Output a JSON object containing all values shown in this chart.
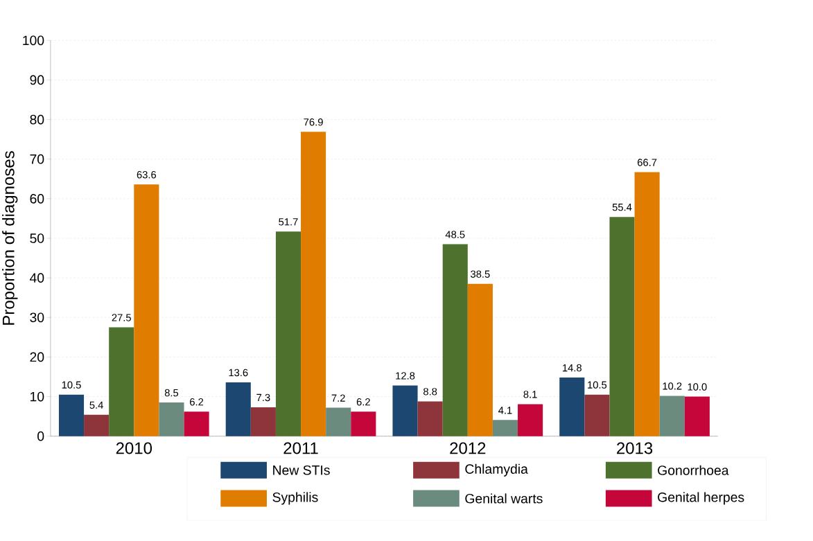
{
  "chart_data": {
    "type": "bar",
    "ylabel": "Proportion of diagnoses",
    "categories": [
      "2010",
      "2011",
      "2012",
      "2013"
    ],
    "series": [
      {
        "name": "New STIs",
        "color": "#1b4770",
        "values": [
          10.5,
          13.6,
          12.8,
          14.8
        ],
        "value_labels": [
          "10.5",
          "13.6",
          "12.8",
          "14.8"
        ]
      },
      {
        "name": "Chlamydia",
        "color": "#8e353b",
        "values": [
          5.4,
          7.3,
          8.8,
          10.5
        ],
        "value_labels": [
          "5.4",
          "7.3",
          "8.8",
          "10.5"
        ]
      },
      {
        "name": "Gonorrhoea",
        "color": "#4e722e",
        "values": [
          27.5,
          51.7,
          48.5,
          55.4
        ],
        "value_labels": [
          "27.5",
          "51.7",
          "48.5",
          "55.4"
        ]
      },
      {
        "name": "Syphilis",
        "color": "#e07c00",
        "values": [
          63.6,
          76.9,
          38.5,
          66.7
        ],
        "value_labels": [
          "63.6",
          "76.9",
          "38.5",
          "66.7"
        ]
      },
      {
        "name": "Genital warts",
        "color": "#6b8b7e",
        "values": [
          8.5,
          7.2,
          4.1,
          10.2
        ],
        "value_labels": [
          "8.5",
          "7.2",
          "4.1",
          "10.2"
        ]
      },
      {
        "name": "Genital herpes",
        "color": "#c4063a",
        "values": [
          6.2,
          6.2,
          8.1,
          10.0
        ],
        "value_labels": [
          "6.2",
          "6.2",
          "8.1",
          "10.0"
        ]
      }
    ],
    "ylim": [
      0,
      100
    ],
    "yticks": [
      0,
      10,
      20,
      30,
      40,
      50,
      60,
      70,
      80,
      90,
      100
    ],
    "grid": "y",
    "legend": "bottom"
  }
}
